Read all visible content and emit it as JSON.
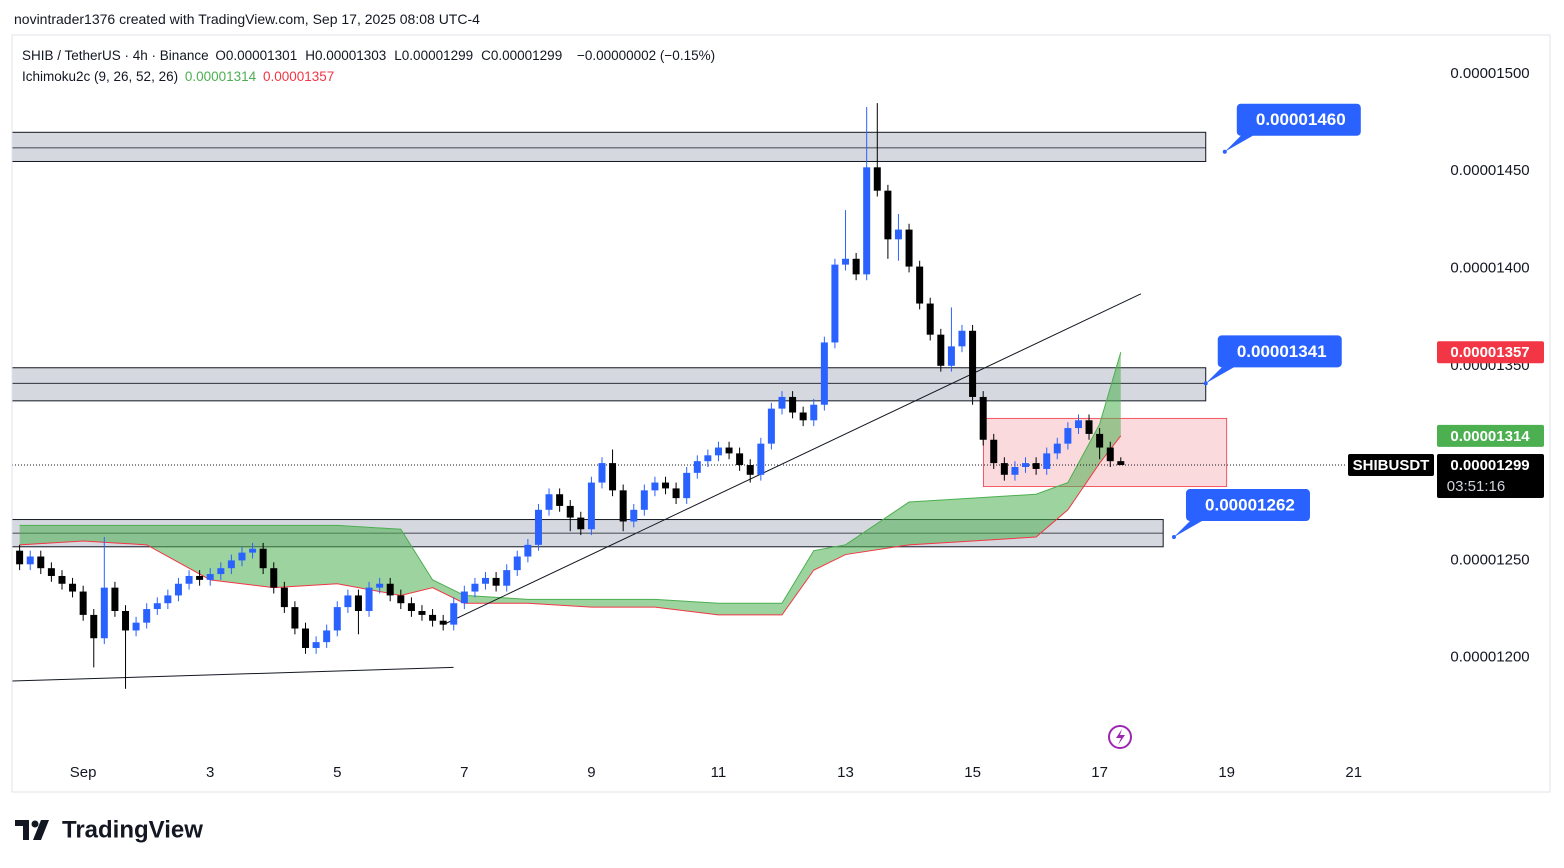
{
  "header": {
    "credit": "novintrader1376 created with TradingView.com, Sep 17, 2025 08:08 UTC-4",
    "symbol": "SHIB / TetherUS · 4h · Binance",
    "ohlc": [
      {
        "key": "O",
        "value": "0.00001301"
      },
      {
        "key": "H",
        "value": "0.00001303"
      },
      {
        "key": "L",
        "value": "0.00001299"
      },
      {
        "key": "C",
        "value": "0.00001299"
      }
    ],
    "change": "−0.00000002 (−0.15%)",
    "indicator": "Ichimoku2c (9, 26, 52, 26)",
    "indicator_values": [
      "0.00001314",
      "0.00001357"
    ]
  },
  "chart_data": {
    "type": "candlestick",
    "up_color": "#2962ff",
    "down_color": "#000000",
    "x": [
      0,
      0.167,
      0.333,
      0.5,
      0.667,
      0.833,
      1,
      1.167,
      1.333,
      1.5,
      1.667,
      1.833,
      2,
      2.167,
      2.333,
      2.5,
      2.667,
      2.833,
      3,
      3.167,
      3.333,
      3.5,
      3.667,
      3.833,
      4,
      4.167,
      4.333,
      4.5,
      4.667,
      4.833,
      5,
      5.167,
      5.333,
      5.5,
      5.667,
      5.833,
      6,
      6.167,
      6.333,
      6.5,
      6.667,
      6.833,
      7,
      7.167,
      7.333,
      7.5,
      7.667,
      7.833,
      8,
      8.167,
      8.333,
      8.5,
      8.667,
      8.833,
      9,
      9.167,
      9.333,
      9.5,
      9.667,
      9.833,
      10,
      10.167,
      10.333,
      10.5,
      10.667,
      10.833,
      11,
      11.167,
      11.333,
      11.5,
      11.667,
      11.833,
      12,
      12.167,
      12.333,
      12.5,
      12.667,
      12.833,
      13,
      13.167,
      13.333,
      13.5,
      13.667,
      13.833,
      14,
      14.167,
      14.333,
      14.5,
      14.667,
      14.833,
      15,
      15.167,
      15.333,
      15.5,
      15.667,
      15.833,
      16,
      16.167,
      16.333,
      16.5,
      16.667,
      16.833,
      17,
      17.167,
      17.333
    ],
    "open": [
      1.255e-05,
      1.248e-05,
      1.252e-05,
      1.246e-05,
      1.242e-05,
      1.238e-05,
      1.234e-05,
      1.222e-05,
      1.21e-05,
      1.236e-05,
      1.224e-05,
      1.214e-05,
      1.218e-05,
      1.225e-05,
      1.228e-05,
      1.232e-05,
      1.238e-05,
      1.242e-05,
      1.24e-05,
      1.243e-05,
      1.246e-05,
      1.25e-05,
      1.254e-05,
      1.256e-05,
      1.246e-05,
      1.236e-05,
      1.226e-05,
      1.215e-05,
      1.205e-05,
      1.208e-05,
      1.214e-05,
      1.226e-05,
      1.232e-05,
      1.224e-05,
      1.236e-05,
      1.238e-05,
      1.232e-05,
      1.228e-05,
      1.224e-05,
      1.222e-05,
      1.219e-05,
      1.217e-05,
      1.228e-05,
      1.234e-05,
      1.238e-05,
      1.241e-05,
      1.237e-05,
      1.245e-05,
      1.252e-05,
      1.258e-05,
      1.276e-05,
      1.284e-05,
      1.278e-05,
      1.272e-05,
      1.266e-05,
      1.29e-05,
      1.3e-05,
      1.286e-05,
      1.27e-05,
      1.276e-05,
      1.286e-05,
      1.29e-05,
      1.287e-05,
      1.282e-05,
      1.295e-05,
      1.301e-05,
      1.304e-05,
      1.308e-05,
      1.305e-05,
      1.299e-05,
      1.294e-05,
      1.31e-05,
      1.328e-05,
      1.334e-05,
      1.326e-05,
      1.322e-05,
      1.33e-05,
      1.362e-05,
      1.402e-05,
      1.405e-05,
      1.397e-05,
      1.452e-05,
      1.44e-05,
      1.415e-05,
      1.42e-05,
      1.401e-05,
      1.382e-05,
      1.366e-05,
      1.35e-05,
      1.36e-05,
      1.368e-05,
      1.334e-05,
      1.312e-05,
      1.3e-05,
      1.294e-05,
      1.298e-05,
      1.3e-05,
      1.297e-05,
      1.305e-05,
      1.31e-05,
      1.318e-05,
      1.322e-05,
      1.315e-05,
      1.308e-05,
      1.301e-05
    ],
    "high": [
      1.258e-05,
      1.255e-05,
      1.255e-05,
      1.249e-05,
      1.245e-05,
      1.241e-05,
      1.237e-05,
      1.225e-05,
      1.262e-05,
      1.239e-05,
      1.227e-05,
      1.221e-05,
      1.228e-05,
      1.231e-05,
      1.235e-05,
      1.241e-05,
      1.245e-05,
      1.245e-05,
      1.246e-05,
      1.249e-05,
      1.253e-05,
      1.257e-05,
      1.259e-05,
      1.259e-05,
      1.249e-05,
      1.239e-05,
      1.229e-05,
      1.218e-05,
      1.211e-05,
      1.217e-05,
      1.229e-05,
      1.235e-05,
      1.235e-05,
      1.239e-05,
      1.241e-05,
      1.241e-05,
      1.235e-05,
      1.231e-05,
      1.227e-05,
      1.225e-05,
      1.222e-05,
      1.231e-05,
      1.237e-05,
      1.241e-05,
      1.244e-05,
      1.244e-05,
      1.248e-05,
      1.255e-05,
      1.261e-05,
      1.279e-05,
      1.287e-05,
      1.287e-05,
      1.281e-05,
      1.275e-05,
      1.293e-05,
      1.303e-05,
      1.307e-05,
      1.289e-05,
      1.279e-05,
      1.289e-05,
      1.293e-05,
      1.293e-05,
      1.29e-05,
      1.298e-05,
      1.304e-05,
      1.307e-05,
      1.311e-05,
      1.311e-05,
      1.308e-05,
      1.302e-05,
      1.313e-05,
      1.331e-05,
      1.337e-05,
      1.337e-05,
      1.329e-05,
      1.333e-05,
      1.365e-05,
      1.405e-05,
      1.43e-05,
      1.408e-05,
      1.483e-05,
      1.485e-05,
      1.443e-05,
      1.428e-05,
      1.423e-05,
      1.404e-05,
      1.385e-05,
      1.369e-05,
      1.38e-05,
      1.371e-05,
      1.371e-05,
      1.337e-05,
      1.315e-05,
      1.303e-05,
      1.301e-05,
      1.303e-05,
      1.303e-05,
      1.308e-05,
      1.313e-05,
      1.321e-05,
      1.325e-05,
      1.325e-05,
      1.318e-05,
      1.311e-05,
      1.303e-05
    ],
    "low": [
      1.245e-05,
      1.245e-05,
      1.243e-05,
      1.239e-05,
      1.235e-05,
      1.231e-05,
      1.219e-05,
      1.195e-05,
      1.207e-05,
      1.221e-05,
      1.184e-05,
      1.211e-05,
      1.215e-05,
      1.222e-05,
      1.225e-05,
      1.229e-05,
      1.235e-05,
      1.237e-05,
      1.237e-05,
      1.24e-05,
      1.243e-05,
      1.247e-05,
      1.251e-05,
      1.243e-05,
      1.233e-05,
      1.223e-05,
      1.212e-05,
      1.202e-05,
      1.202e-05,
      1.205e-05,
      1.211e-05,
      1.223e-05,
      1.212e-05,
      1.221e-05,
      1.233e-05,
      1.229e-05,
      1.225e-05,
      1.221e-05,
      1.219e-05,
      1.216e-05,
      1.214e-05,
      1.214e-05,
      1.225e-05,
      1.231e-05,
      1.235e-05,
      1.234e-05,
      1.234e-05,
      1.242e-05,
      1.249e-05,
      1.255e-05,
      1.273e-05,
      1.275e-05,
      1.265e-05,
      1.263e-05,
      1.263e-05,
      1.287e-05,
      1.283e-05,
      1.265e-05,
      1.267e-05,
      1.273e-05,
      1.283e-05,
      1.284e-05,
      1.279e-05,
      1.279e-05,
      1.292e-05,
      1.298e-05,
      1.301e-05,
      1.302e-05,
      1.296e-05,
      1.29e-05,
      1.291e-05,
      1.307e-05,
      1.325e-05,
      1.323e-05,
      1.319e-05,
      1.319e-05,
      1.327e-05,
      1.359e-05,
      1.399e-05,
      1.394e-05,
      1.394e-05,
      1.437e-05,
      1.405e-05,
      1.404e-05,
      1.398e-05,
      1.379e-05,
      1.363e-05,
      1.347e-05,
      1.347e-05,
      1.357e-05,
      1.33e-05,
      1.309e-05,
      1.297e-05,
      1.291e-05,
      1.291e-05,
      1.295e-05,
      1.294e-05,
      1.294e-05,
      1.302e-05,
      1.307e-05,
      1.315e-05,
      1.312e-05,
      1.302e-05,
      1.298e-05,
      1.299e-05
    ],
    "close": [
      1.248e-05,
      1.252e-05,
      1.246e-05,
      1.242e-05,
      1.238e-05,
      1.234e-05,
      1.222e-05,
      1.21e-05,
      1.236e-05,
      1.224e-05,
      1.214e-05,
      1.218e-05,
      1.225e-05,
      1.228e-05,
      1.232e-05,
      1.238e-05,
      1.242e-05,
      1.24e-05,
      1.243e-05,
      1.246e-05,
      1.25e-05,
      1.254e-05,
      1.256e-05,
      1.246e-05,
      1.236e-05,
      1.226e-05,
      1.215e-05,
      1.205e-05,
      1.208e-05,
      1.214e-05,
      1.226e-05,
      1.232e-05,
      1.224e-05,
      1.236e-05,
      1.238e-05,
      1.232e-05,
      1.228e-05,
      1.224e-05,
      1.222e-05,
      1.219e-05,
      1.217e-05,
      1.228e-05,
      1.234e-05,
      1.238e-05,
      1.241e-05,
      1.237e-05,
      1.245e-05,
      1.252e-05,
      1.258e-05,
      1.276e-05,
      1.284e-05,
      1.278e-05,
      1.272e-05,
      1.266e-05,
      1.29e-05,
      1.3e-05,
      1.286e-05,
      1.27e-05,
      1.276e-05,
      1.286e-05,
      1.29e-05,
      1.287e-05,
      1.282e-05,
      1.295e-05,
      1.301e-05,
      1.304e-05,
      1.308e-05,
      1.305e-05,
      1.299e-05,
      1.294e-05,
      1.31e-05,
      1.328e-05,
      1.334e-05,
      1.326e-05,
      1.322e-05,
      1.33e-05,
      1.362e-05,
      1.402e-05,
      1.405e-05,
      1.397e-05,
      1.452e-05,
      1.44e-05,
      1.415e-05,
      1.42e-05,
      1.401e-05,
      1.382e-05,
      1.366e-05,
      1.35e-05,
      1.36e-05,
      1.368e-05,
      1.334e-05,
      1.312e-05,
      1.3e-05,
      1.294e-05,
      1.298e-05,
      1.3e-05,
      1.297e-05,
      1.305e-05,
      1.31e-05,
      1.318e-05,
      1.322e-05,
      1.315e-05,
      1.308e-05,
      1.301e-05,
      1.299e-05
    ],
    "xlim": [
      -0.12,
      22.2
    ],
    "xticks": [
      {
        "value": 1,
        "label": "Sep"
      },
      3,
      5,
      7,
      9,
      11,
      13,
      15,
      17,
      19,
      21
    ],
    "ylim": [
      1.15e-05,
      1.52e-05
    ],
    "yticks": [
      {
        "value": 1.2e-05,
        "label": "0.00001200"
      },
      {
        "value": 1.25e-05,
        "label": "0.00001250"
      },
      {
        "value": 1.35e-05,
        "label": "0.00001350"
      },
      {
        "value": 1.4e-05,
        "label": "0.00001400"
      },
      {
        "value": 1.45e-05,
        "label": "0.00001450"
      },
      {
        "value": 1.5e-05,
        "label": "0.00001500"
      }
    ],
    "cloud": {
      "color": "#4caf50",
      "x": [
        0,
        1,
        2,
        3,
        4,
        5,
        6,
        6.5,
        7,
        8,
        9,
        10,
        11,
        12,
        12.5,
        13,
        14,
        15,
        16,
        16.5,
        17,
        17.333
      ],
      "lead1": [
        1.268e-05,
        1.268e-05,
        1.268e-05,
        1.268e-05,
        1.268e-05,
        1.268e-05,
        1.266e-05,
        1.24e-05,
        1.232e-05,
        1.23e-05,
        1.23e-05,
        1.23e-05,
        1.228e-05,
        1.228e-05,
        1.255e-05,
        1.258e-05,
        1.28e-05,
        1.282e-05,
        1.284e-05,
        1.29e-05,
        1.32e-05,
        1.357e-05
      ],
      "lead2": [
        1.258e-05,
        1.26e-05,
        1.258e-05,
        1.24e-05,
        1.236e-05,
        1.238e-05,
        1.232e-05,
        1.236e-05,
        1.228e-05,
        1.228e-05,
        1.226e-05,
        1.226e-05,
        1.222e-05,
        1.222e-05,
        1.245e-05,
        1.253e-05,
        1.258e-05,
        1.26e-05,
        1.262e-05,
        1.276e-05,
        1.3e-05,
        1.314e-05
      ]
    },
    "zones": [
      {
        "x": [
          -0.12,
          18.67
        ],
        "y": [
          1.455e-05,
          1.47e-05
        ],
        "mid": 1.462e-05,
        "color": "#d1d4dc"
      },
      {
        "x": [
          -0.12,
          18.67
        ],
        "y": [
          1.332e-05,
          1.349e-05
        ],
        "mid": 1.341e-05,
        "color": "#d1d4dc"
      },
      {
        "x": [
          -0.12,
          18
        ],
        "y": [
          1.257e-05,
          1.271e-05
        ],
        "mid": 1.264e-05,
        "color": "#d1d4dc"
      },
      {
        "x": [
          15.17,
          19
        ],
        "y": [
          1.288e-05,
          1.323e-05
        ],
        "color": "#f8cdd0"
      }
    ],
    "trendlines": [
      {
        "x": [
          6.67,
          17.65
        ],
        "y": [
          1.217e-05,
          1.387e-05
        ]
      },
      {
        "x": [
          -0.12,
          6.83
        ],
        "y": [
          1.188e-05,
          1.195e-05
        ]
      }
    ],
    "callouts": [
      {
        "text": "0.00001460",
        "x": 18.97,
        "value": 1.46e-05
      },
      {
        "text": "0.00001341",
        "x": 18.67,
        "value": 1.341e-05
      },
      {
        "text": "0.00001262",
        "x": 18.17,
        "value": 1.262e-05
      }
    ],
    "price_labels": [
      {
        "text": "0.00001357",
        "value": 1.357e-05,
        "color": "#f23645"
      },
      {
        "text": "0.00001314",
        "value": 1.314e-05,
        "color": "#4caf50"
      }
    ],
    "last": {
      "symbol": "SHIBUSDT",
      "price": "0.00001299",
      "countdown": "03:51:16"
    }
  },
  "footer": {
    "brand": "TradingView"
  }
}
